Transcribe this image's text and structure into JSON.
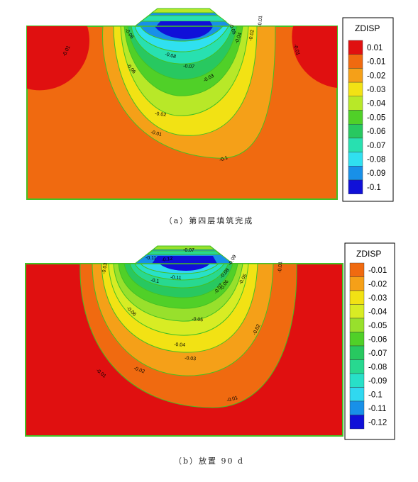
{
  "panels": [
    {
      "id": "a",
      "caption": "（a）第四层填筑完成",
      "legend_title": "ZDISP",
      "levels": [
        "0.01",
        "-0.01",
        "-0.02",
        "-0.03",
        "-0.04",
        "-0.05",
        "-0.06",
        "-0.07",
        "-0.08",
        "-0.09",
        "-0.1"
      ],
      "colors": [
        "#e01010",
        "#f06a10",
        "#f5a018",
        "#f2e214",
        "#b8e828",
        "#50d028",
        "#28c860",
        "#28e0b0",
        "#30e0f0",
        "#1890e8",
        "#1010d8"
      ],
      "contour_labels": [
        "-0.01",
        "-0.01",
        "-0.06",
        "-0.05",
        "-0.08",
        "-0.07",
        "-0.06",
        "-0.04",
        "-0.02",
        "-0.01",
        "-0.03",
        "-0.02",
        "-0.01",
        "-0.1"
      ]
    },
    {
      "id": "b",
      "caption": "（b）放置 90 d",
      "legend_title": "ZDISP",
      "levels": [
        "-0.01",
        "-0.02",
        "-0.03",
        "-0.04",
        "-0.05",
        "-0.06",
        "-0.07",
        "-0.08",
        "-0.09",
        "-0.1",
        "-0.11",
        "-0.12"
      ],
      "colors": [
        "#f06a10",
        "#f5a018",
        "#f2e214",
        "#d8ec24",
        "#98e02c",
        "#50d028",
        "#28c860",
        "#28d890",
        "#28e0c8",
        "#30d8f0",
        "#1890e8",
        "#1010d8"
      ],
      "contour_labels": [
        "-0.07",
        "-0.11",
        "-0.12",
        "-0.09",
        "-0.1",
        "-0.11",
        "-0.08",
        "-0.03",
        "-0.05",
        "-0.06",
        "-0.07",
        "-0.06",
        "-0.05",
        "-0.04",
        "-0.03",
        "-0.02",
        "-0.01",
        "-0.01",
        "-0.01",
        "-0.02"
      ]
    }
  ]
}
